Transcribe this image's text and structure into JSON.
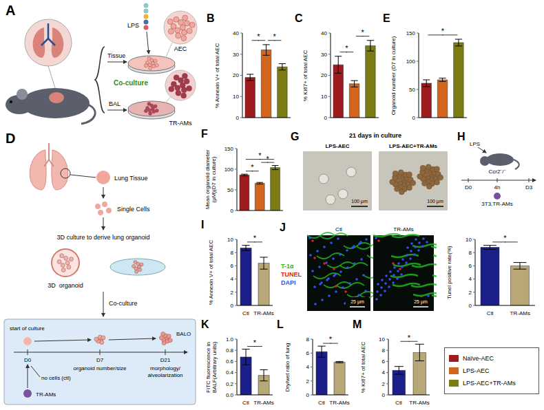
{
  "chart_data": [
    {
      "panel": "B",
      "type": "bar",
      "y_label": "% Annexin V+ of total AEC",
      "categories": [
        "Naïve-AEC",
        "LPS-AEC",
        "LPS-AEC+TR-AMs"
      ],
      "values": [
        19,
        32,
        24
      ],
      "errors": [
        1.5,
        2.5,
        1.5
      ],
      "colors": [
        "#a01b1e",
        "#d2661f",
        "#7d7c12"
      ],
      "ylim": [
        0,
        40
      ],
      "yticks": [
        0,
        10,
        20,
        30,
        40
      ],
      "tick_labels": "y",
      "significance": [
        {
          "between": [
            0,
            1
          ],
          "label": "*"
        },
        {
          "between": [
            1,
            2
          ],
          "label": "*"
        }
      ]
    },
    {
      "panel": "C",
      "type": "bar",
      "y_label": "% Ki67+ of total AEC",
      "categories": [
        "Naïve-AEC",
        "LPS-AEC",
        "LPS-AEC+TR-AMs"
      ],
      "values": [
        25,
        16,
        34
      ],
      "errors": [
        4,
        1.5,
        2.5
      ],
      "colors": [
        "#a01b1e",
        "#d2661f",
        "#7d7c12"
      ],
      "ylim": [
        0,
        40
      ],
      "yticks": [
        0,
        10,
        20,
        30,
        40
      ],
      "tick_labels": "y",
      "significance": [
        {
          "between": [
            0,
            1
          ],
          "label": "*"
        },
        {
          "between": [
            1,
            2
          ],
          "label": "*"
        }
      ]
    },
    {
      "panel": "E",
      "type": "bar",
      "y_label": "Organoid number (D7 in culture)",
      "categories": [
        "Naïve-AEC",
        "LPS-AEC",
        "LPS-AEC+TR-AMs"
      ],
      "values": [
        61,
        67,
        133
      ],
      "errors": [
        6,
        3,
        6
      ],
      "colors": [
        "#a01b1e",
        "#d2661f",
        "#7d7c12"
      ],
      "ylim": [
        0,
        150
      ],
      "yticks": [
        0,
        50,
        100,
        150
      ],
      "tick_labels": "y",
      "significance": [
        {
          "between": [
            0,
            2
          ],
          "label": "*"
        }
      ]
    },
    {
      "panel": "F",
      "type": "bar",
      "y_label": "Mean organoid diameter (μM)(D7 in culture)",
      "categories": [
        "Naïve-AEC",
        "LPS-AEC",
        "LPS-AEC+TR-AMs"
      ],
      "values": [
        86,
        66,
        104
      ],
      "errors": [
        2,
        2,
        5
      ],
      "colors": [
        "#a01b1e",
        "#d2661f",
        "#7d7c12"
      ],
      "ylim": [
        0,
        150
      ],
      "yticks": [
        0,
        50,
        100,
        150
      ],
      "tick_labels": "y",
      "significance": [
        {
          "between": [
            0,
            1
          ],
          "label": "*"
        },
        {
          "between": [
            0,
            2
          ],
          "label": "*"
        },
        {
          "between": [
            1,
            2
          ],
          "label": "*"
        }
      ]
    },
    {
      "panel": "I",
      "type": "bar",
      "y_label": "% Annexin V+ of total AEC",
      "categories": [
        "Ctl",
        "TR-AMs"
      ],
      "values": [
        8.7,
        6.4
      ],
      "errors": [
        0.4,
        0.9
      ],
      "colors": [
        "#1c1e8a",
        "#b8a878"
      ],
      "ylim": [
        0,
        10
      ],
      "yticks": [
        0,
        2,
        4,
        6,
        8,
        10
      ],
      "significance": [
        {
          "between": [
            0,
            1
          ],
          "label": "*"
        }
      ]
    },
    {
      "panel": "J",
      "type": "bar",
      "y_label": "Tunel positive rate(%)",
      "categories": [
        "Ctl",
        "TR-AMs"
      ],
      "values": [
        8.8,
        6.0
      ],
      "errors": [
        0.3,
        0.5
      ],
      "colors": [
        "#1c1e8a",
        "#b8a878"
      ],
      "ylim": [
        0,
        10
      ],
      "yticks": [
        0,
        2,
        4,
        6,
        8,
        10
      ],
      "significance": [
        {
          "between": [
            0,
            1
          ],
          "label": "*"
        }
      ]
    },
    {
      "panel": "K",
      "type": "bar",
      "y_label": "FITC fluorescence in BALF(Arbitrary units)",
      "categories": [
        "Ctl",
        "TR-AMs"
      ],
      "values": [
        0.68,
        0.35
      ],
      "errors": [
        0.14,
        0.1
      ],
      "colors": [
        "#1c1e8a",
        "#b8a878"
      ],
      "ylim": [
        0,
        1
      ],
      "yticks": [
        {
          "value": 0,
          "label": "0.0"
        },
        0.2,
        0.4,
        0.6,
        0.8,
        {
          "value": 1,
          "label": "1.0"
        }
      ],
      "significance": [
        {
          "between": [
            0,
            1
          ],
          "label": "*"
        }
      ]
    },
    {
      "panel": "L",
      "type": "bar",
      "y_label": "Dry/wet ratio of lung",
      "categories": [
        "Ctl",
        "TR-AMs"
      ],
      "values": [
        6.2,
        4.7
      ],
      "errors": [
        0.8,
        0.1
      ],
      "colors": [
        "#1c1e8a",
        "#b8a878"
      ],
      "ylim": [
        0,
        8
      ],
      "yticks": [
        0,
        2,
        4,
        6,
        8
      ],
      "significance": [
        {
          "between": [
            0,
            1
          ],
          "label": "*"
        }
      ]
    },
    {
      "panel": "M",
      "type": "bar",
      "y_label": "% Ki67+ of total AEC",
      "categories": [
        "Ctl",
        "TR-AMs"
      ],
      "values": [
        4.4,
        7.6
      ],
      "errors": [
        0.7,
        1.5
      ],
      "colors": [
        "#1c1e8a",
        "#b8a878"
      ],
      "ylim": [
        0,
        10
      ],
      "yticks": [
        0,
        2,
        4,
        6,
        8,
        10
      ],
      "significance": [
        {
          "between": [
            0,
            1
          ],
          "label": "*"
        }
      ]
    }
  ],
  "figure": {
    "A": {
      "letter": "A",
      "tissue": "Tissue",
      "lps": "LPS",
      "aec": "AEC",
      "co_culture": "Co-culture",
      "tr_ams": "TR-AMs",
      "bal": "BAL"
    },
    "D": {
      "letter": "D",
      "lung_tissue": "Lung Tissue",
      "single_cells": "Single Cells",
      "culture": "3D culture to derive lung organoid",
      "organoid": "3D  organoid",
      "co_culture": "Co-culture",
      "start": "start of culture",
      "days": [
        "D0",
        "D7",
        "D21"
      ],
      "d7_note": "organoid number/size",
      "d21_note": "morphology/ alveolarization",
      "tr_ams": "TR-AMs",
      "no_cells": "no cells (ctl)",
      "balo": "BALO"
    },
    "G": {
      "letter": "G",
      "title": "21 days in culture",
      "images": [
        "LPS-AEC",
        "LPS-AEC+TR-AMs"
      ],
      "scale_bar": "100 µm"
    },
    "H": {
      "letter": "H",
      "lps": "LPS",
      "mouse": "Ccr2⁻/⁻",
      "times": [
        "D0",
        "4h",
        "D3"
      ],
      "cells": "3T3,TR-AMs"
    },
    "J": {
      "stains": [
        {
          "name": "T-1α",
          "color": "#22bb22"
        },
        {
          "name": "TUNEL",
          "color": "#e02020"
        },
        {
          "name": "DAPI",
          "color": "#3050ff"
        }
      ],
      "images": [
        "Ctl",
        "TR-AMs"
      ],
      "scale_bar": "25 µm"
    }
  }
}
